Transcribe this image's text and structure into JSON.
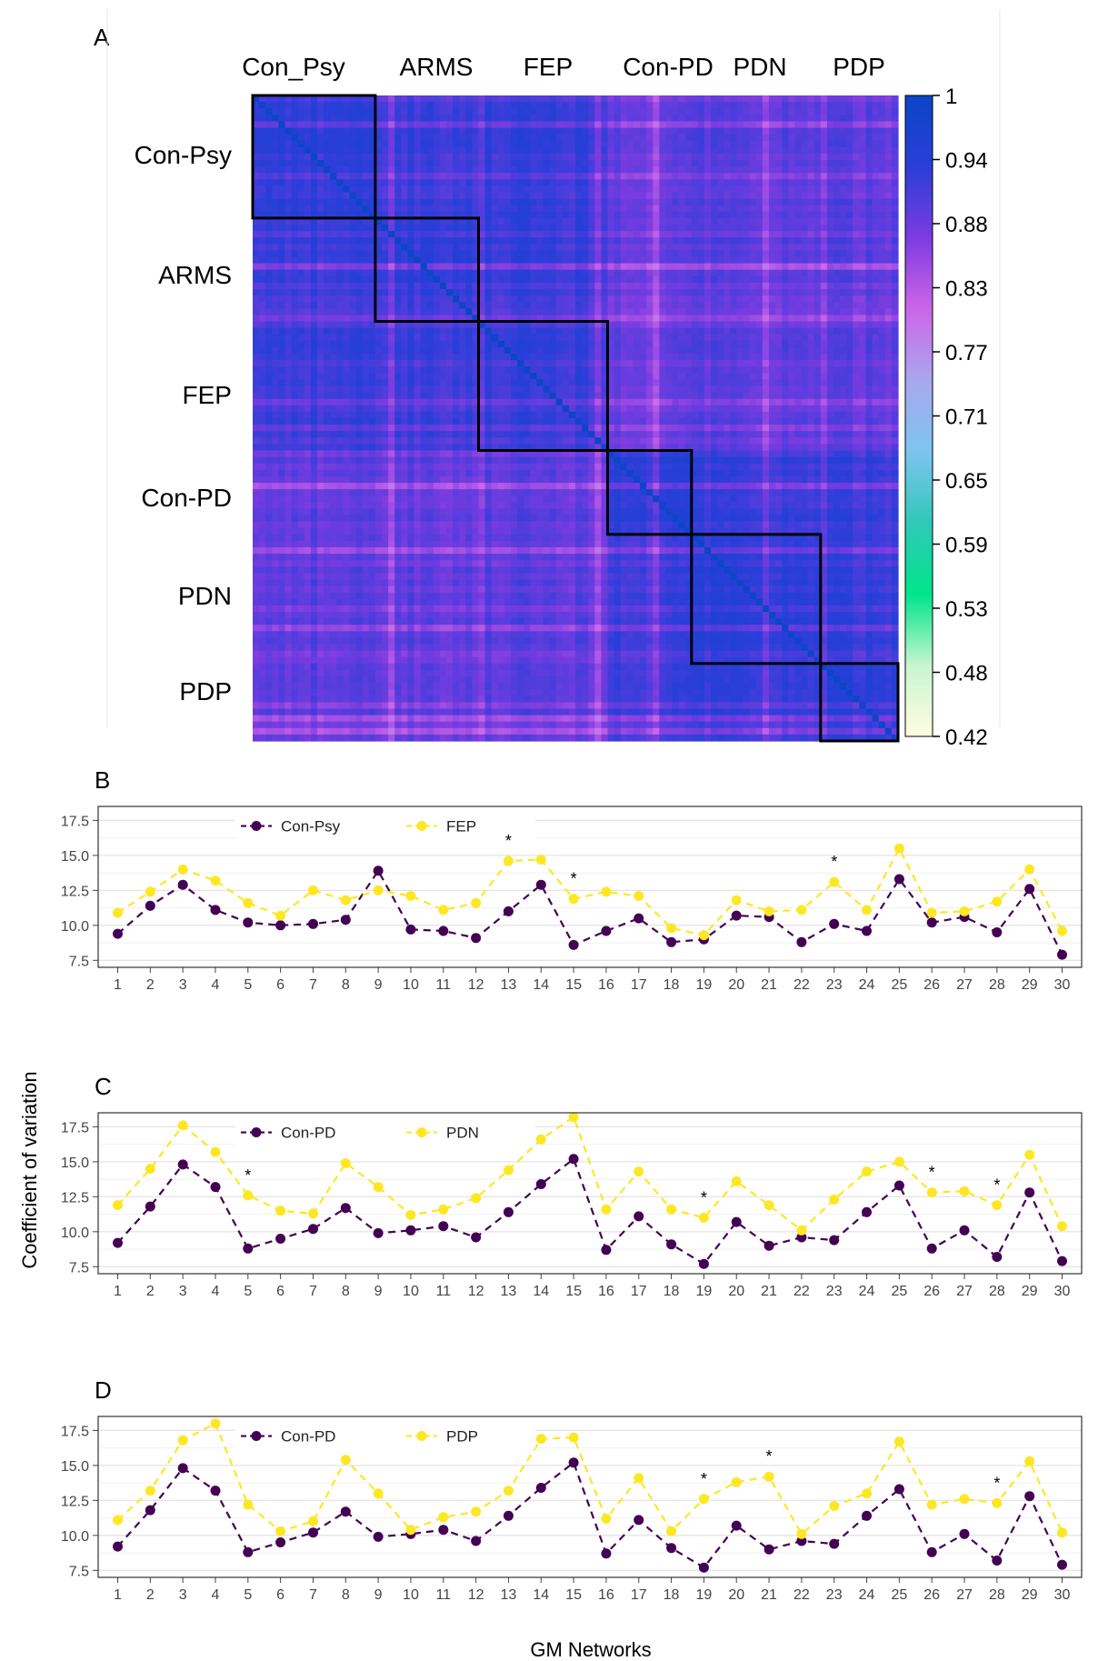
{
  "chart_data": [
    {
      "panel": "A",
      "type": "heatmap",
      "column_labels": [
        "Con_Psy",
        "ARMS",
        "FEP",
        "Con-PD",
        "PDN",
        "PDP"
      ],
      "row_labels": [
        "Con-Psy",
        "ARMS",
        "FEP",
        "Con-PD",
        "PDN",
        "PDP"
      ],
      "colorbar": {
        "ticks": [
          "1",
          "0.94",
          "0.88",
          "0.83",
          "0.77",
          "0.71",
          "0.65",
          "0.59",
          "0.53",
          "0.48",
          "0.42"
        ],
        "range": [
          0.42,
          1
        ],
        "stops": [
          "#fffde0",
          "#c8f5d0",
          "#00e58a",
          "#30c8b8",
          "#7dc4f0",
          "#a9a7ee",
          "#cc66e8",
          "#7c3ce0",
          "#2a3ed8",
          "#0b45c8"
        ]
      },
      "blocks": [
        {
          "group": "Con-Psy",
          "start": 0,
          "end": 0.19
        },
        {
          "group": "ARMS",
          "start": 0.19,
          "end": 0.35
        },
        {
          "group": "FEP",
          "start": 0.35,
          "end": 0.55
        },
        {
          "group": "Con-PD",
          "start": 0.55,
          "end": 0.68
        },
        {
          "group": "PDN",
          "start": 0.68,
          "end": 0.88
        },
        {
          "group": "PDP",
          "start": 0.88,
          "end": 1.0
        }
      ],
      "approx_within_block_similarity": {
        "Con-Psy": 0.93,
        "ARMS": 0.93,
        "FEP": 0.92,
        "Con-PD": 0.94,
        "PDN": 0.93,
        "PDP": 0.93
      },
      "approx_between_block_similarity": 0.9
    },
    {
      "panel": "B",
      "type": "line",
      "x": [
        1,
        2,
        3,
        4,
        5,
        6,
        7,
        8,
        9,
        10,
        11,
        12,
        13,
        14,
        15,
        16,
        17,
        18,
        19,
        20,
        21,
        22,
        23,
        24,
        25,
        26,
        27,
        28,
        29,
        30
      ],
      "ylim": [
        7.0,
        18.5
      ],
      "yticks": [
        7.5,
        10.0,
        12.5,
        15.0,
        17.5
      ],
      "series": [
        {
          "name": "Con-Psy",
          "color": "#440154",
          "values": [
            9.4,
            11.4,
            12.9,
            11.1,
            10.2,
            10.0,
            10.1,
            10.4,
            13.9,
            9.7,
            9.6,
            9.1,
            11.0,
            12.9,
            8.6,
            9.6,
            10.5,
            8.8,
            9.0,
            10.7,
            10.6,
            8.8,
            10.1,
            9.6,
            13.3,
            10.2,
            10.6,
            9.5,
            12.6,
            7.9
          ]
        },
        {
          "name": "FEP",
          "color": "#fde725",
          "values": [
            10.9,
            12.4,
            14.0,
            13.2,
            11.6,
            10.7,
            12.5,
            11.8,
            12.5,
            12.1,
            11.1,
            11.6,
            14.6,
            14.7,
            11.9,
            12.4,
            12.1,
            9.8,
            9.3,
            11.8,
            11.0,
            11.1,
            13.1,
            11.1,
            15.5,
            10.9,
            11.0,
            11.7,
            14.0,
            9.6
          ]
        }
      ],
      "annotations": [
        {
          "x": 13,
          "text": "*"
        },
        {
          "x": 15,
          "text": "*"
        },
        {
          "x": 23,
          "text": "*"
        }
      ]
    },
    {
      "panel": "C",
      "type": "line",
      "x": [
        1,
        2,
        3,
        4,
        5,
        6,
        7,
        8,
        9,
        10,
        11,
        12,
        13,
        14,
        15,
        16,
        17,
        18,
        19,
        20,
        21,
        22,
        23,
        24,
        25,
        26,
        27,
        28,
        29,
        30
      ],
      "ylim": [
        7.0,
        18.5
      ],
      "yticks": [
        7.5,
        10.0,
        12.5,
        15.0,
        17.5
      ],
      "series": [
        {
          "name": "Con-PD",
          "color": "#440154",
          "values": [
            9.2,
            11.8,
            14.8,
            13.2,
            8.8,
            9.5,
            10.2,
            11.7,
            9.9,
            10.1,
            10.4,
            9.6,
            11.4,
            13.4,
            15.2,
            8.7,
            11.1,
            9.1,
            7.7,
            10.7,
            9.0,
            9.6,
            9.4,
            11.4,
            13.3,
            8.8,
            10.1,
            8.2,
            12.8,
            7.9
          ]
        },
        {
          "name": "PDN",
          "color": "#fde725",
          "values": [
            11.9,
            14.5,
            17.6,
            15.7,
            12.6,
            11.5,
            11.3,
            14.9,
            13.2,
            11.2,
            11.6,
            12.4,
            14.4,
            16.6,
            18.2,
            11.6,
            14.3,
            11.6,
            11.0,
            13.6,
            11.9,
            10.1,
            12.3,
            14.3,
            15.0,
            12.8,
            12.9,
            11.9,
            15.5,
            10.4
          ]
        }
      ],
      "annotations": [
        {
          "x": 5,
          "text": "*"
        },
        {
          "x": 19,
          "text": "*"
        },
        {
          "x": 26,
          "text": "*"
        },
        {
          "x": 28,
          "text": "*"
        }
      ]
    },
    {
      "panel": "D",
      "type": "line",
      "x": [
        1,
        2,
        3,
        4,
        5,
        6,
        7,
        8,
        9,
        10,
        11,
        12,
        13,
        14,
        15,
        16,
        17,
        18,
        19,
        20,
        21,
        22,
        23,
        24,
        25,
        26,
        27,
        28,
        29,
        30
      ],
      "ylim": [
        7.0,
        18.5
      ],
      "yticks": [
        7.5,
        10.0,
        12.5,
        15.0,
        17.5
      ],
      "xlabel": "GM Networks",
      "series": [
        {
          "name": "Con-PD",
          "color": "#440154",
          "values": [
            9.2,
            11.8,
            14.8,
            13.2,
            8.8,
            9.5,
            10.2,
            11.7,
            9.9,
            10.1,
            10.4,
            9.6,
            11.4,
            13.4,
            15.2,
            8.7,
            11.1,
            9.1,
            7.7,
            10.7,
            9.0,
            9.6,
            9.4,
            11.4,
            13.3,
            8.8,
            10.1,
            8.2,
            12.8,
            7.9
          ]
        },
        {
          "name": "PDP",
          "color": "#fde725",
          "values": [
            11.1,
            13.2,
            16.8,
            18.0,
            12.2,
            10.3,
            11.0,
            15.4,
            13.0,
            10.4,
            11.3,
            11.7,
            13.2,
            16.9,
            17.0,
            11.2,
            14.1,
            10.3,
            12.6,
            13.8,
            14.2,
            10.1,
            12.1,
            13.0,
            16.7,
            12.2,
            12.6,
            12.3,
            15.3,
            10.2
          ]
        }
      ],
      "annotations": [
        {
          "x": 19,
          "text": "*"
        },
        {
          "x": 21,
          "text": "*"
        },
        {
          "x": 28,
          "text": "*"
        }
      ]
    }
  ],
  "shared": {
    "ylabel": "Coefficient of variation"
  }
}
